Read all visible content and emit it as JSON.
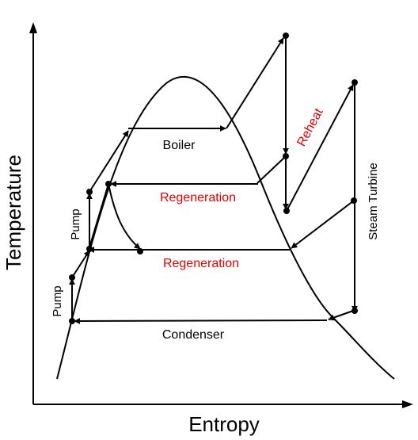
{
  "diagram": {
    "x_axis_label": "Entropy",
    "y_axis_label": "Temperature",
    "labels": {
      "boiler": "Boiler",
      "condenser": "Condenser",
      "regeneration_upper": "Regeneration",
      "regeneration_lower": "Regeneration",
      "reheat": "Reheat",
      "steam_turbine": "Steam  Turbine",
      "pump_upper": "Pump",
      "pump_lower": "Pump"
    },
    "colors": {
      "line": "#000000",
      "highlight_text": "#e00000",
      "background": "#ffffff"
    }
  }
}
